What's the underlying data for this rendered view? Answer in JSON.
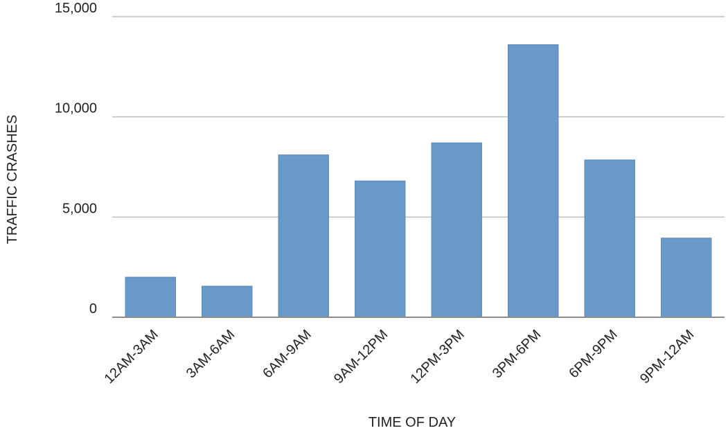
{
  "chart_data": {
    "type": "bar",
    "title": "",
    "xlabel": "TIME OF DAY",
    "ylabel": "TRAFFIC CRASHES",
    "categories": [
      "12AM-3AM",
      "3AM-6AM",
      "6AM-9AM",
      "9AM-12PM",
      "12PM-3PM",
      "3PM-6PM",
      "6PM-9PM",
      "9PM-12AM"
    ],
    "values": [
      2000,
      1550,
      8100,
      6800,
      8700,
      13600,
      7850,
      3950
    ],
    "ylim": [
      0,
      15000
    ],
    "yticks": [
      0,
      5000,
      10000,
      15000
    ],
    "ytick_labels": [
      "0",
      "5,000",
      "10,000",
      "15,000"
    ],
    "grid": true,
    "legend": "none",
    "bar_color": "#6899c9"
  }
}
